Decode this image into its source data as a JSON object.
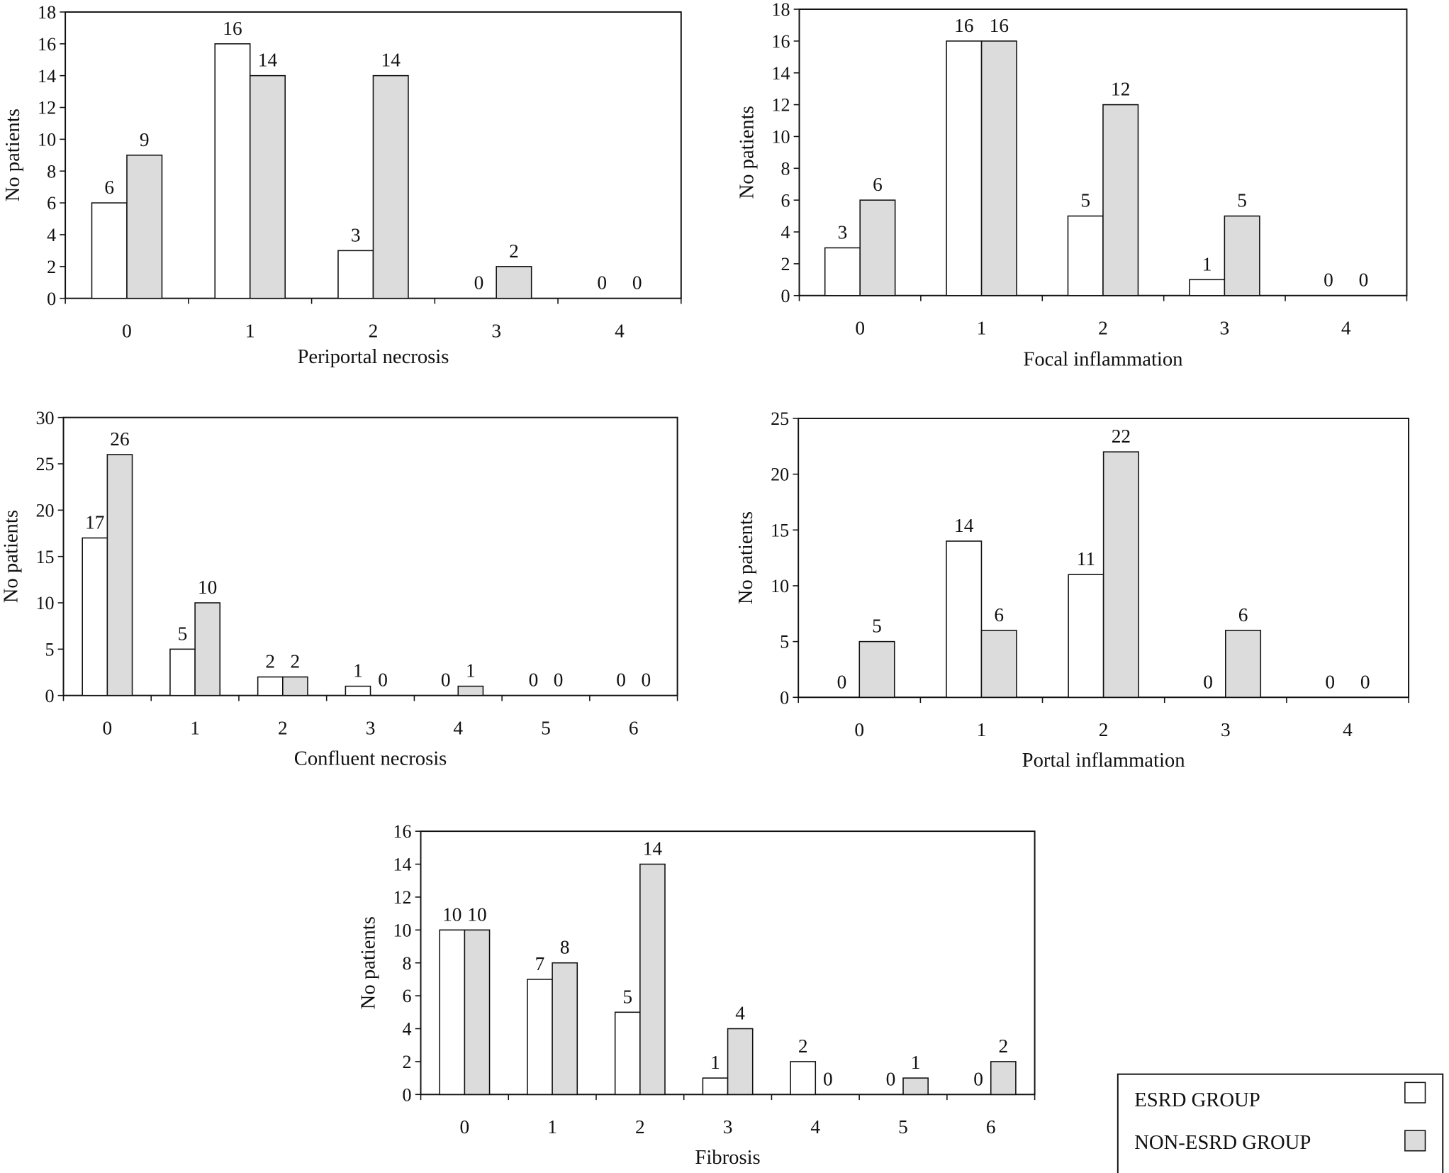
{
  "colors": {
    "esrd": "#ffffff",
    "non_esrd": "#dcdcdc",
    "stroke": "#111111"
  },
  "legend": {
    "position": "bottom-right",
    "entries": [
      "ESRD  GROUP",
      "NON-ESRD  GROUP"
    ]
  },
  "chart_data": [
    {
      "type": "bar",
      "title": "",
      "xlabel": "Periportal necrosis",
      "ylabel": "No patients",
      "ylim": [
        0,
        18
      ],
      "yticks": [
        0,
        2,
        4,
        6,
        8,
        10,
        12,
        14,
        16,
        18
      ],
      "categories": [
        "0",
        "1",
        "2",
        "3",
        "4"
      ],
      "series": [
        {
          "name": "ESRD GROUP",
          "values": [
            6,
            16,
            3,
            0,
            0
          ]
        },
        {
          "name": "NON-ESRD GROUP",
          "values": [
            9,
            14,
            14,
            2,
            0
          ]
        }
      ]
    },
    {
      "type": "bar",
      "title": "",
      "xlabel": "Focal inflammation",
      "ylabel": "No patients",
      "ylim": [
        0,
        18
      ],
      "yticks": [
        0,
        2,
        4,
        6,
        8,
        10,
        12,
        14,
        16,
        18
      ],
      "categories": [
        "0",
        "1",
        "2",
        "3",
        "4"
      ],
      "series": [
        {
          "name": "ESRD GROUP",
          "values": [
            3,
            16,
            5,
            1,
            0
          ]
        },
        {
          "name": "NON-ESRD GROUP",
          "values": [
            6,
            16,
            12,
            5,
            0
          ]
        }
      ]
    },
    {
      "type": "bar",
      "title": "",
      "xlabel": "Confluent necrosis",
      "ylabel": "No patients",
      "ylim": [
        0,
        30
      ],
      "yticks": [
        0,
        5,
        10,
        15,
        20,
        25,
        30
      ],
      "categories": [
        "0",
        "1",
        "2",
        "3",
        "4",
        "5",
        "6"
      ],
      "series": [
        {
          "name": "ESRD GROUP",
          "values": [
            17,
            5,
            2,
            1,
            0,
            0,
            0
          ]
        },
        {
          "name": "NON-ESRD GROUP",
          "values": [
            26,
            10,
            2,
            0,
            1,
            0,
            0
          ]
        }
      ]
    },
    {
      "type": "bar",
      "title": "",
      "xlabel": "Portal inflammation",
      "ylabel": "No patients",
      "ylim": [
        0,
        25
      ],
      "yticks": [
        0,
        5,
        10,
        15,
        20,
        25
      ],
      "categories": [
        "0",
        "1",
        "2",
        "3",
        "4"
      ],
      "series": [
        {
          "name": "ESRD GROUP",
          "values": [
            0,
            14,
            11,
            0,
            0
          ]
        },
        {
          "name": "NON-ESRD GROUP",
          "values": [
            5,
            6,
            22,
            6,
            0
          ]
        }
      ]
    },
    {
      "type": "bar",
      "title": "",
      "xlabel": "Fibrosis",
      "ylabel": "No patients",
      "ylim": [
        0,
        16
      ],
      "yticks": [
        0,
        2,
        4,
        6,
        8,
        10,
        12,
        14,
        16
      ],
      "categories": [
        "0",
        "1",
        "2",
        "3",
        "4",
        "5",
        "6"
      ],
      "series": [
        {
          "name": "ESRD GROUP",
          "values": [
            10,
            7,
            5,
            1,
            2,
            0,
            0
          ]
        },
        {
          "name": "NON-ESRD GROUP",
          "values": [
            10,
            8,
            14,
            4,
            0,
            1,
            2
          ]
        }
      ]
    }
  ]
}
